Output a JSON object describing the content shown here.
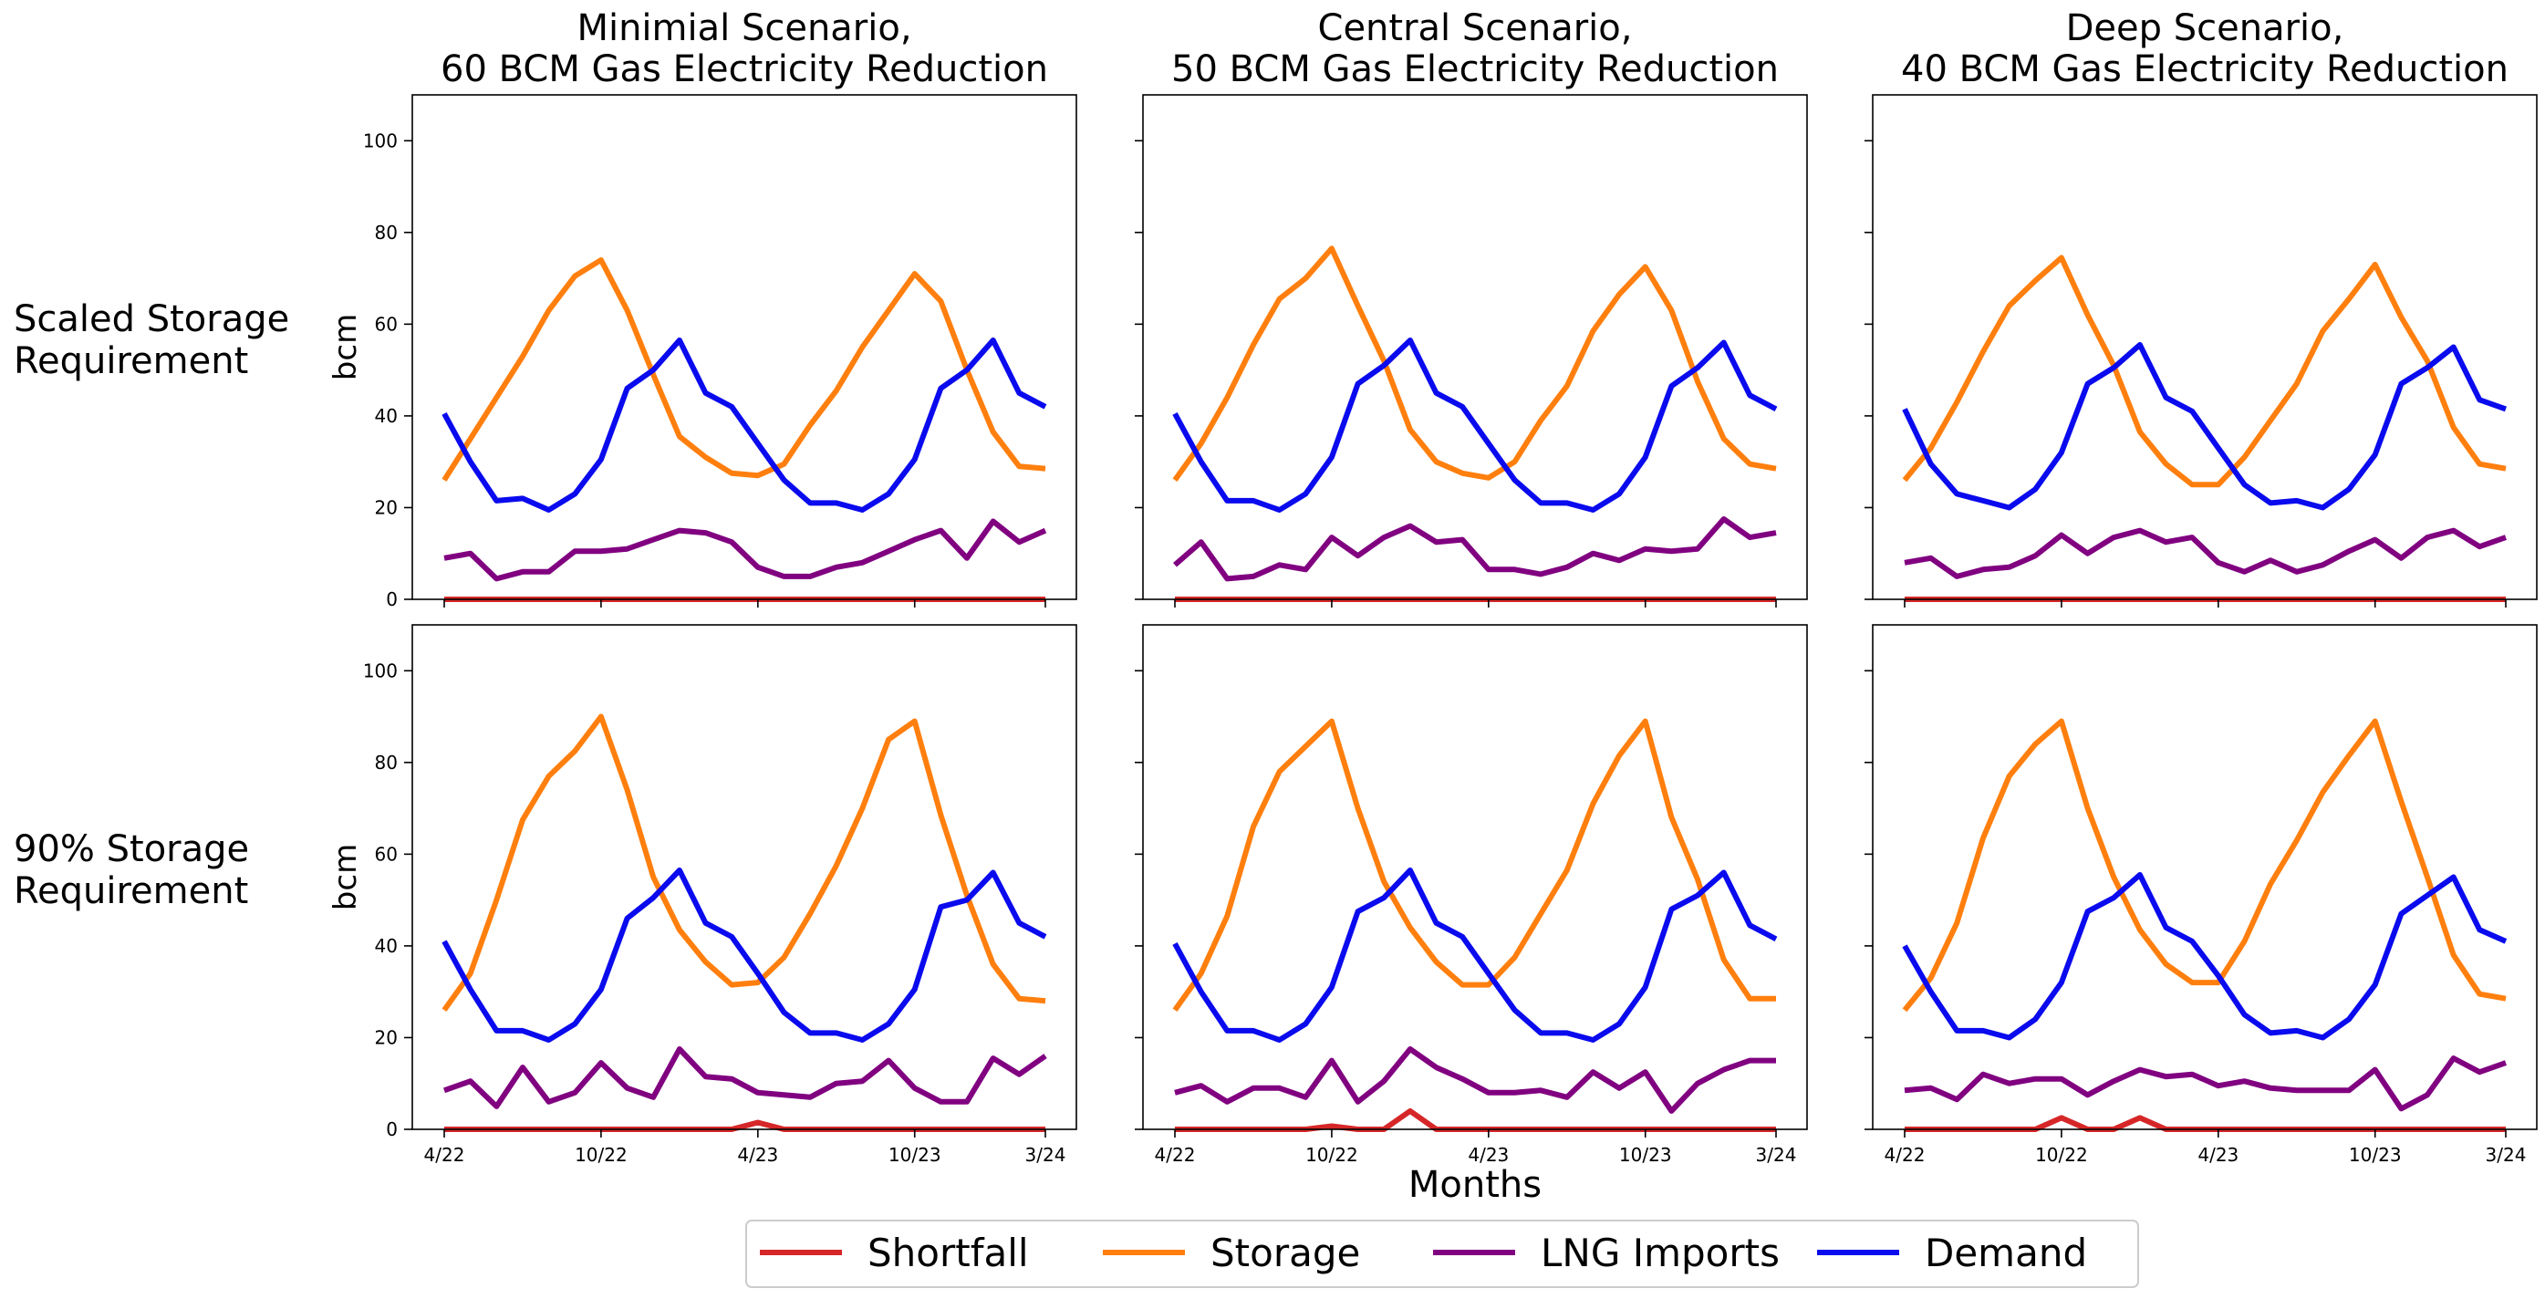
{
  "chart_data": {
    "type": "line",
    "x": [
      "4/22",
      "5/22",
      "6/22",
      "7/22",
      "8/22",
      "9/22",
      "10/22",
      "11/22",
      "12/22",
      "1/23",
      "2/23",
      "3/23",
      "4/23",
      "5/23",
      "6/23",
      "7/23",
      "8/23",
      "9/23",
      "10/23",
      "11/23",
      "12/23",
      "1/24",
      "2/24",
      "3/24"
    ],
    "xticks": [
      "4/22",
      "10/22",
      "4/23",
      "10/23",
      "3/24"
    ],
    "yticks": [
      0,
      20,
      40,
      60,
      80,
      100
    ],
    "ylim": [
      0,
      110
    ],
    "ylabel": "bcm",
    "xlabel": "Months",
    "columns": [
      [
        "Minimial Scenario,",
        "60 BCM Gas Electricity Reduction"
      ],
      [
        "Central Scenario,",
        "50 BCM Gas Electricity Reduction"
      ],
      [
        "Deep Scenario,",
        "40 BCM Gas Electricity Reduction"
      ]
    ],
    "rows": [
      [
        "Scaled Storage",
        "Requirement"
      ],
      [
        "90% Storage",
        "Requirement"
      ]
    ],
    "legend": [
      {
        "name": "Shortfall",
        "color": "#d62728"
      },
      {
        "name": "Storage",
        "color": "#ff7f0e"
      },
      {
        "name": "LNG Imports",
        "color": "#800080"
      },
      {
        "name": "Demand",
        "color": "#0a0aee"
      }
    ],
    "legend_position": "bottom-center",
    "panels": [
      {
        "Shortfall": [
          0,
          0,
          0,
          0,
          0,
          0,
          0,
          0,
          0,
          0,
          0,
          0,
          0,
          0,
          0,
          0,
          0,
          0,
          0,
          0,
          0,
          0,
          0,
          0
        ],
        "Storage": [
          26,
          35,
          44,
          53,
          63,
          70.5,
          74,
          63,
          49,
          35.5,
          31,
          27.5,
          27,
          29.5,
          38,
          45.5,
          55,
          63,
          71,
          65,
          50,
          36.5,
          29,
          28.5
        ],
        "LNG Imports": [
          9,
          10,
          4.5,
          6,
          6,
          10.5,
          10.5,
          11,
          13,
          15,
          14.5,
          12.5,
          7,
          5,
          5,
          7,
          8,
          10.5,
          13,
          15,
          9,
          17,
          12.5,
          15
        ],
        "Demand": [
          40.5,
          30,
          21.5,
          22,
          19.5,
          23,
          30.5,
          46,
          50,
          56.5,
          45,
          42,
          34,
          26,
          21,
          21,
          19.5,
          23,
          30.5,
          46,
          50,
          56.5,
          45,
          42
        ]
      },
      {
        "Shortfall": [
          0,
          0,
          0,
          0,
          0,
          0,
          0,
          0,
          0,
          0,
          0,
          0,
          0,
          0,
          0,
          0,
          0,
          0,
          0,
          0,
          0,
          0,
          0,
          0
        ],
        "Storage": [
          26,
          34,
          44,
          55.5,
          65.5,
          70,
          76.5,
          64,
          52,
          37,
          30,
          27.5,
          26.5,
          30,
          39,
          46.5,
          58.5,
          66.5,
          72.5,
          63,
          47.5,
          35,
          29.5,
          28.5
        ],
        "LNG Imports": [
          7.5,
          12.5,
          4.5,
          5,
          7.5,
          6.5,
          13.5,
          9.5,
          13.5,
          16,
          12.5,
          13,
          6.5,
          6.5,
          5.5,
          7,
          10,
          8.5,
          11,
          10.5,
          11,
          17.5,
          13.5,
          14.5
        ],
        "Demand": [
          40.5,
          30,
          21.5,
          21.5,
          19.5,
          23,
          31,
          47,
          51,
          56.5,
          45,
          42,
          34,
          26,
          21,
          21,
          19.5,
          23,
          31,
          46.5,
          50.5,
          56,
          44.5,
          41.5
        ]
      },
      {
        "Shortfall": [
          0,
          0,
          0,
          0,
          0,
          0,
          0,
          0,
          0,
          0,
          0,
          0,
          0,
          0,
          0,
          0,
          0,
          0,
          0,
          0,
          0,
          0,
          0,
          0
        ],
        "Storage": [
          26,
          33,
          43,
          54,
          64,
          69.5,
          74.5,
          62,
          51,
          36.5,
          29.5,
          25,
          25,
          31,
          39,
          47,
          58.5,
          65.5,
          73,
          61.5,
          52,
          37.5,
          29.5,
          28.5
        ],
        "LNG Imports": [
          8,
          9,
          5,
          6.5,
          7,
          9.5,
          14,
          10,
          13.5,
          15,
          12.5,
          13.5,
          8,
          6,
          8.5,
          6,
          7.5,
          10.5,
          13,
          9,
          13.5,
          15,
          11.5,
          13.5
        ],
        "Demand": [
          41.5,
          29.5,
          23,
          21.5,
          20,
          24,
          32,
          47,
          50.5,
          55.5,
          44,
          41,
          33,
          25,
          21,
          21.5,
          20,
          24,
          31.5,
          47,
          50.5,
          55,
          43.5,
          41.5
        ]
      },
      {
        "Shortfall": [
          0,
          0,
          0,
          0,
          0,
          0,
          0,
          0,
          0,
          0,
          0,
          0,
          1.5,
          0,
          0,
          0,
          0,
          0,
          0,
          0,
          0,
          0,
          0,
          0
        ],
        "Storage": [
          26,
          34,
          50,
          67.5,
          77,
          82.5,
          90,
          74,
          55,
          43.5,
          36.5,
          31.5,
          32,
          37.5,
          47,
          57.5,
          70,
          85,
          89,
          68.5,
          51,
          36,
          28.5,
          28
        ],
        "LNG Imports": [
          8.5,
          10.5,
          5,
          13.5,
          6,
          8,
          14.5,
          9,
          7,
          17.5,
          11.5,
          11,
          8,
          7.5,
          7,
          10,
          10.5,
          15,
          9,
          6,
          6,
          15.5,
          12,
          16
        ],
        "Demand": [
          41,
          30.5,
          21.5,
          21.5,
          19.5,
          23,
          30.5,
          46,
          50.5,
          56.5,
          45,
          42,
          34,
          25.5,
          21,
          21,
          19.5,
          23,
          30.5,
          48.5,
          50,
          56,
          45,
          42
        ]
      },
      {
        "Shortfall": [
          0,
          0,
          0,
          0,
          0,
          0,
          0.7,
          0,
          0,
          4,
          0,
          0,
          0,
          0,
          0,
          0,
          0,
          0,
          0,
          0,
          0,
          0,
          0,
          0
        ],
        "Storage": [
          26,
          34,
          46.5,
          66,
          78,
          83.5,
          89,
          70,
          54,
          44,
          36.5,
          31.5,
          31.5,
          37.5,
          47,
          56.5,
          71,
          81.5,
          89,
          68,
          54.5,
          37,
          28.5,
          28.5
        ],
        "LNG Imports": [
          8,
          9.5,
          6,
          9,
          9,
          7,
          15,
          6,
          10.5,
          17.5,
          13.5,
          11,
          8,
          8,
          8.5,
          7,
          12.5,
          9,
          12.5,
          4,
          10,
          13,
          15,
          15
        ],
        "Demand": [
          40.5,
          30,
          21.5,
          21.5,
          19.5,
          23,
          31,
          47.5,
          50.5,
          56.5,
          45,
          42,
          34,
          26,
          21,
          21,
          19.5,
          23,
          31,
          48,
          51,
          56,
          44.5,
          41.5
        ]
      },
      {
        "Shortfall": [
          0,
          0,
          0,
          0,
          0,
          0,
          2.5,
          0,
          0,
          2.5,
          0,
          0,
          0,
          0,
          0,
          0,
          0,
          0,
          0,
          0,
          0,
          0,
          0,
          0
        ],
        "Storage": [
          26,
          33,
          45,
          63.5,
          77,
          84,
          89,
          70,
          55,
          43.5,
          36,
          32,
          32,
          41,
          53.5,
          63,
          73.5,
          81.5,
          89,
          71.5,
          55,
          38,
          29.5,
          28.5
        ],
        "LNG Imports": [
          8.5,
          9,
          6.5,
          12,
          10,
          11,
          11,
          7.5,
          10.5,
          13,
          11.5,
          12,
          9.5,
          10.5,
          9,
          8.5,
          8.5,
          8.5,
          13,
          4.5,
          7.5,
          15.5,
          12.5,
          14.5
        ],
        "Demand": [
          40,
          30,
          21.5,
          21.5,
          20,
          24,
          32,
          47.5,
          50.5,
          55.5,
          44,
          41,
          33.5,
          25,
          21,
          21.5,
          20,
          24,
          31.5,
          47,
          51,
          55,
          43.5,
          41
        ]
      }
    ]
  }
}
